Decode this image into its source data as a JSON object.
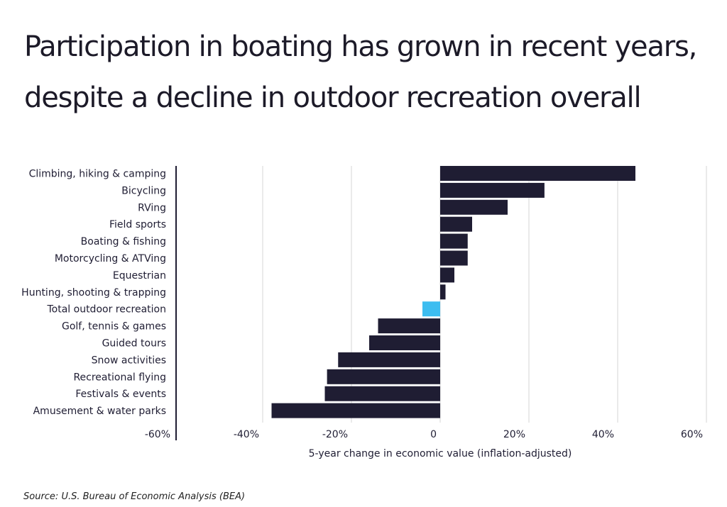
{
  "title": "Participation in boating has grown in recent years, despite a decline in outdoor recreation overall",
  "source": "Source: U.S. Bureau of Economic Analysis (BEA)",
  "colors": {
    "bar": "#1f1d33",
    "highlight": "#3dbdf0",
    "grid": "#d6d6d6",
    "axis": "#1f1d33"
  },
  "chart_data": {
    "type": "bar",
    "orientation": "horizontal",
    "title": "Participation in boating has grown in recent years, despite a decline in outdoor recreation overall",
    "xlabel": "5-year change in economic value (inflation-adjusted)",
    "ylabel": "",
    "xlim": [
      -60,
      60
    ],
    "xticks": [
      -60,
      -40,
      -20,
      0,
      20,
      40,
      60
    ],
    "xtick_labels": [
      "-60%",
      "-40%",
      "-20%",
      "0",
      "20%",
      "40%",
      "60%"
    ],
    "grid": true,
    "highlight_category": "Total outdoor recreation",
    "categories": [
      "Climbing, hiking & camping",
      "Bicycling",
      "RVing",
      "Field sports",
      "Boating & fishing",
      "Motorcycling & ATVing",
      "Equestrian",
      "Hunting, shooting & trapping",
      "Total outdoor recreation",
      "Golf, tennis & games",
      "Guided tours",
      "Snow activities",
      "Recreational flying",
      "Festivals & events",
      "Amusement & water parks"
    ],
    "values": [
      44,
      23.5,
      15.2,
      7.2,
      6.2,
      6.2,
      3.2,
      1.2,
      -4,
      -14,
      -16,
      -23,
      -25.5,
      -26,
      -38
    ]
  }
}
